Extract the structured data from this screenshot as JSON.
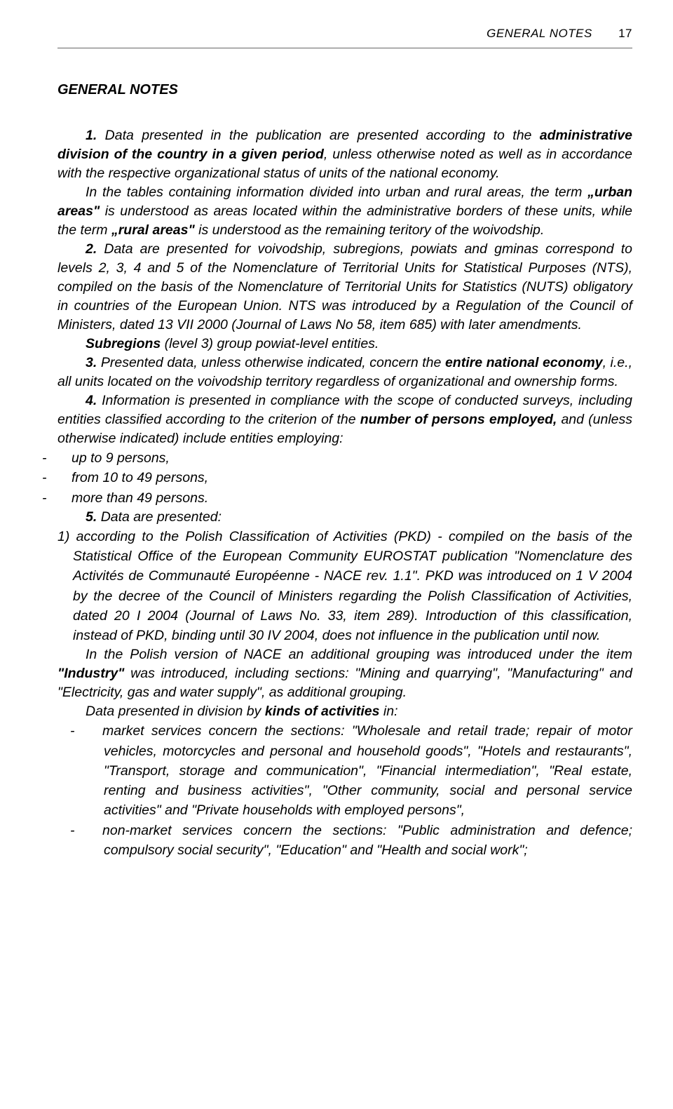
{
  "header": {
    "label": "GENERAL NOTES",
    "page": "17"
  },
  "title": "GENERAL NOTES",
  "para1": {
    "n": "1.",
    "t1": "Data presented in the publication are presented according to the ",
    "b1": "administrative division of the country in a given period",
    "t2": ", unless otherwise noted as well as in accordance with the respective organizational status of units of the national economy."
  },
  "para1b": {
    "t1": "In the tables containing information divided into urban and rural areas, the term ",
    "b1": "„urban areas\"",
    "t2": " is understood as areas located within the administrative borders of these units, while the term ",
    "b2": "„rural areas\"",
    "t3": " is understood as the remaining teritory of the woivodship."
  },
  "para2": {
    "n": "2.",
    "t": "Data are presented for voivodship, subregions, powiats and gminas correspond to levels 2, 3, 4 and 5 of the Nomenclature of Territorial Units for Statistical Purposes (NTS), compiled on the basis of the Nomenclature of Territorial Units for Statistics (NUTS) obligatory in countries of the European Union. NTS was introduced by a Regulation of the Council of Ministers, dated 13 VII 2000 (Journal of Laws No 58, item 685) with later amendments."
  },
  "para2b": {
    "b": "Subregions",
    "t": " (level 3) group powiat-level entities."
  },
  "para3": {
    "n": "3.",
    "t1": "Presented data, unless otherwise indicated, concern the ",
    "b1": "entire national economy",
    "t2": ", i.e., all units located on the voivodship territory regardless of organizational and ownership forms."
  },
  "para4": {
    "n": "4.",
    "t1": "Information is presented in compliance with the scope of conducted surveys, including entities classified according to the criterion of the ",
    "b1": "number of persons employed,",
    "t2": " and (unless otherwise indicated) include entities employing:"
  },
  "bulletsA": {
    "a": "up to 9 persons,",
    "b": "from 10 to 49 persons,",
    "c": "more than 49 persons."
  },
  "para5": {
    "n": "5.",
    "t": "Data are presented:"
  },
  "item1": {
    "pre": "1) according to the ",
    "b": "Polish Classification of Activities (PKD)",
    "t": " - compiled on the basis of the Statistical Office of the European Community EUROSTAT publication \"Nomenclature des Activités de Communauté Européenne - NACE rev. 1.1\". PKD was introduced on 1 V 2004 by the decree of the Council of Ministers regarding the Polish Classification of Activities, dated 20 I 2004 (Journal of Laws No. 33, item 289). Introduction of this classification, instead of PKD, binding until 30 IV 2004, does not influence in the publication until now."
  },
  "para6": {
    "t1": "In the Polish version of NACE an additional grouping was introduced under the item ",
    "b1": "\"Industry\"",
    "t2": " was introduced, including sections: \"Mining and quarrying\", \"Manufacturing\" and \"Electricity, gas and water supply\", as additional grouping."
  },
  "para7": {
    "t1": "Data presented in division by ",
    "b1": "kinds of activities",
    "t2": " in:"
  },
  "sub": {
    "m": {
      "b": "market services",
      "t": " concern the sections: \"Wholesale and retail trade; repair of motor vehicles, motorcycles and personal and household goods\", \"Hotels and restaurants\", \"Transport, storage and communication\", \"Financial intermediation\", \"Real estate, renting and business activities\", \"Other community, social and personal service activities\" and \"Private households with employed persons\","
    },
    "n": {
      "b": "non-market services",
      "t": " concern the sections: \"Public administration and defence; compulsory social security\", \"Education\" and \"Health and social work\";"
    }
  }
}
